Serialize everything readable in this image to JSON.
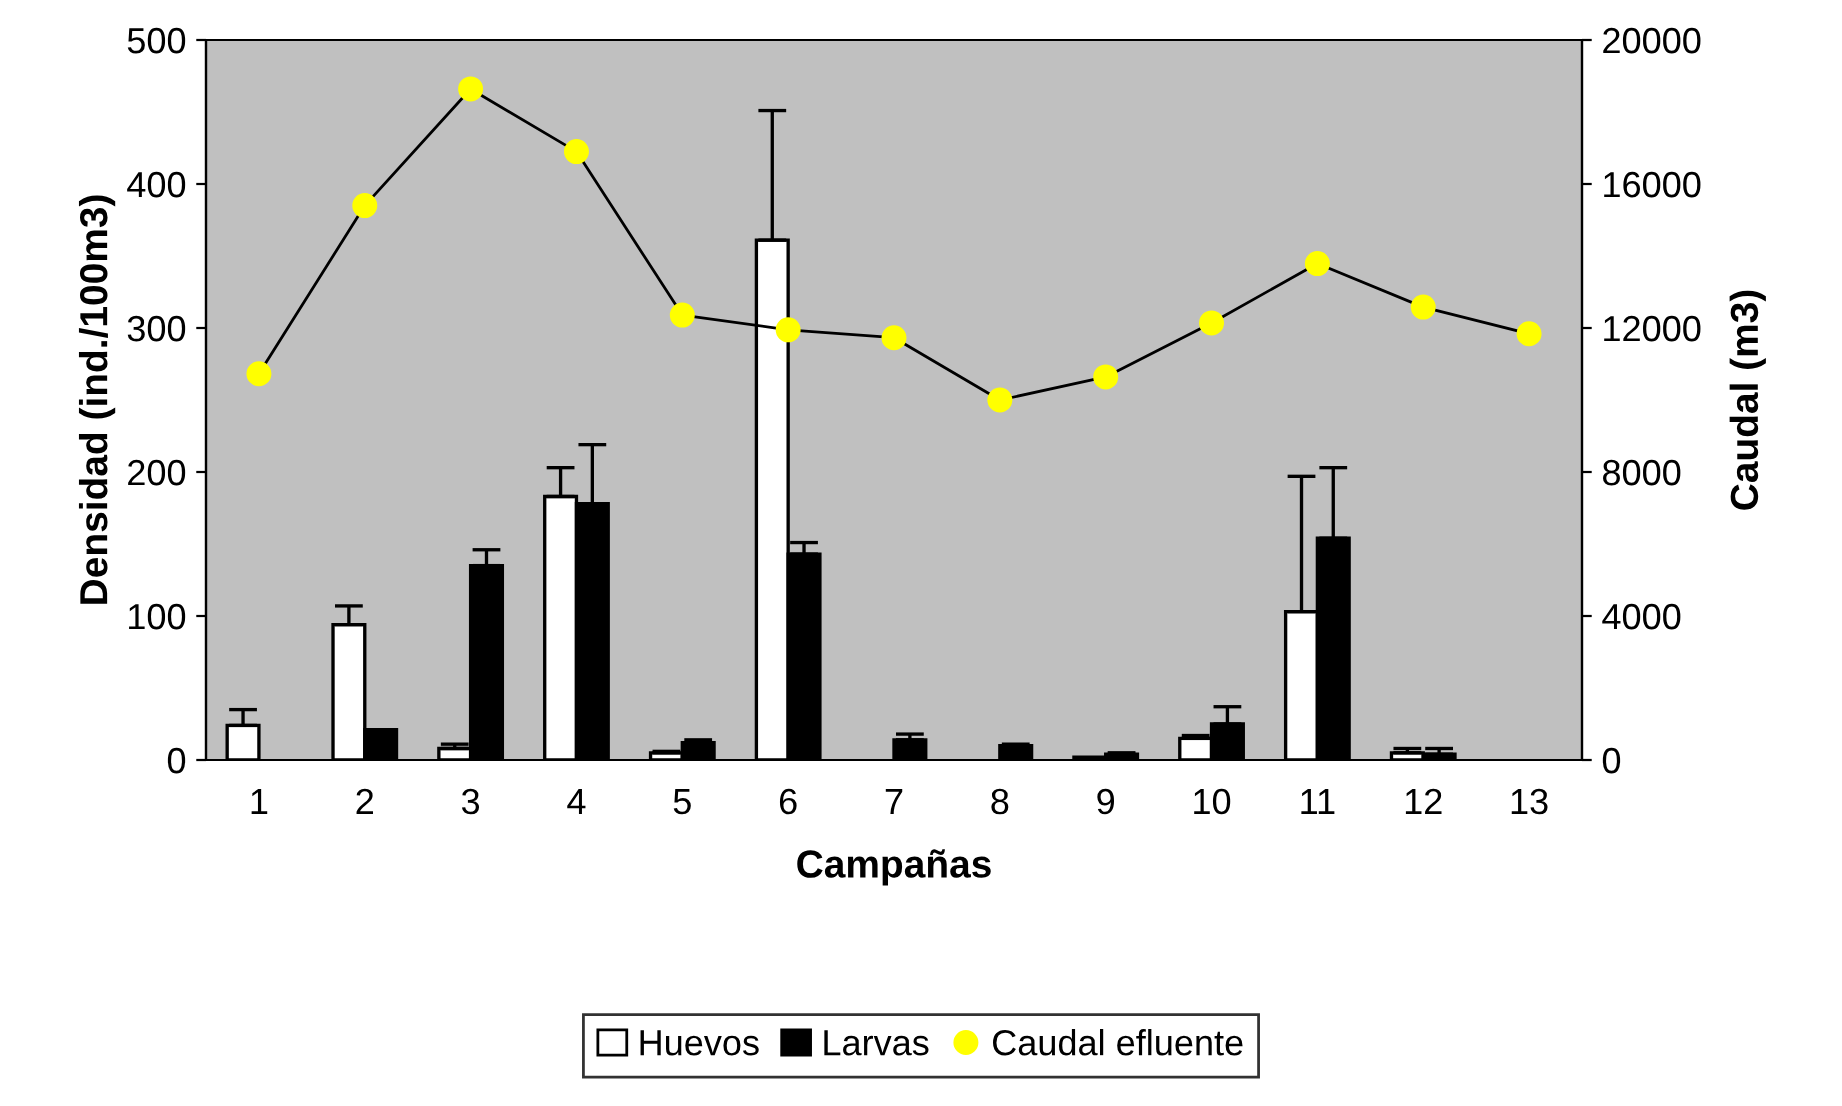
{
  "chart_data": {
    "type": "bar",
    "xlabel": "Campañas",
    "ylabel": "Densidad (ind./100m3)",
    "y2label": "Caudal (m3)",
    "categories": [
      "1",
      "2",
      "3",
      "4",
      "5",
      "6",
      "7",
      "8",
      "9",
      "10",
      "11",
      "12",
      "13"
    ],
    "series": [
      {
        "name": "Huevos",
        "color": "#ffffff",
        "values": [
          24,
          94,
          8,
          183,
          5,
          361,
          0,
          0,
          2,
          15,
          103,
          5,
          0
        ],
        "errors": [
          [
            24,
            35
          ],
          [
            94,
            107
          ],
          [
            8,
            11
          ],
          [
            183,
            203
          ],
          [
            5,
            6
          ],
          [
            361,
            451
          ],
          null,
          null,
          null,
          [
            15,
            17
          ],
          [
            103,
            197
          ],
          [
            5,
            8
          ],
          null
        ]
      },
      {
        "name": "Larvas",
        "color": "#000000",
        "values": [
          0,
          21,
          135,
          178,
          12,
          143,
          14,
          10,
          4,
          25,
          154,
          4,
          0
        ],
        "errors": [
          null,
          null,
          [
            135,
            146
          ],
          [
            178,
            219
          ],
          [
            12,
            14
          ],
          [
            143,
            151
          ],
          [
            14,
            18
          ],
          [
            10,
            11
          ],
          [
            4,
            5
          ],
          [
            25,
            37
          ],
          [
            154,
            203
          ],
          [
            4,
            8
          ],
          null
        ]
      },
      {
        "name": "Caudal efluente",
        "type": "line",
        "axis": "y2",
        "color": "#ffff00",
        "marker": "circle",
        "values": [
          10730,
          15400,
          18640,
          16900,
          12360,
          11950,
          11730,
          10000,
          10640,
          12140,
          13790,
          12580,
          11840
        ]
      }
    ],
    "ylim": [
      0,
      500
    ],
    "yticks": [
      0,
      100,
      200,
      300,
      400,
      500
    ],
    "y2lim": [
      0,
      20000
    ],
    "y2ticks": [
      0,
      4000,
      8000,
      12000,
      16000,
      20000
    ],
    "legend": "bottom",
    "grid": false
  }
}
